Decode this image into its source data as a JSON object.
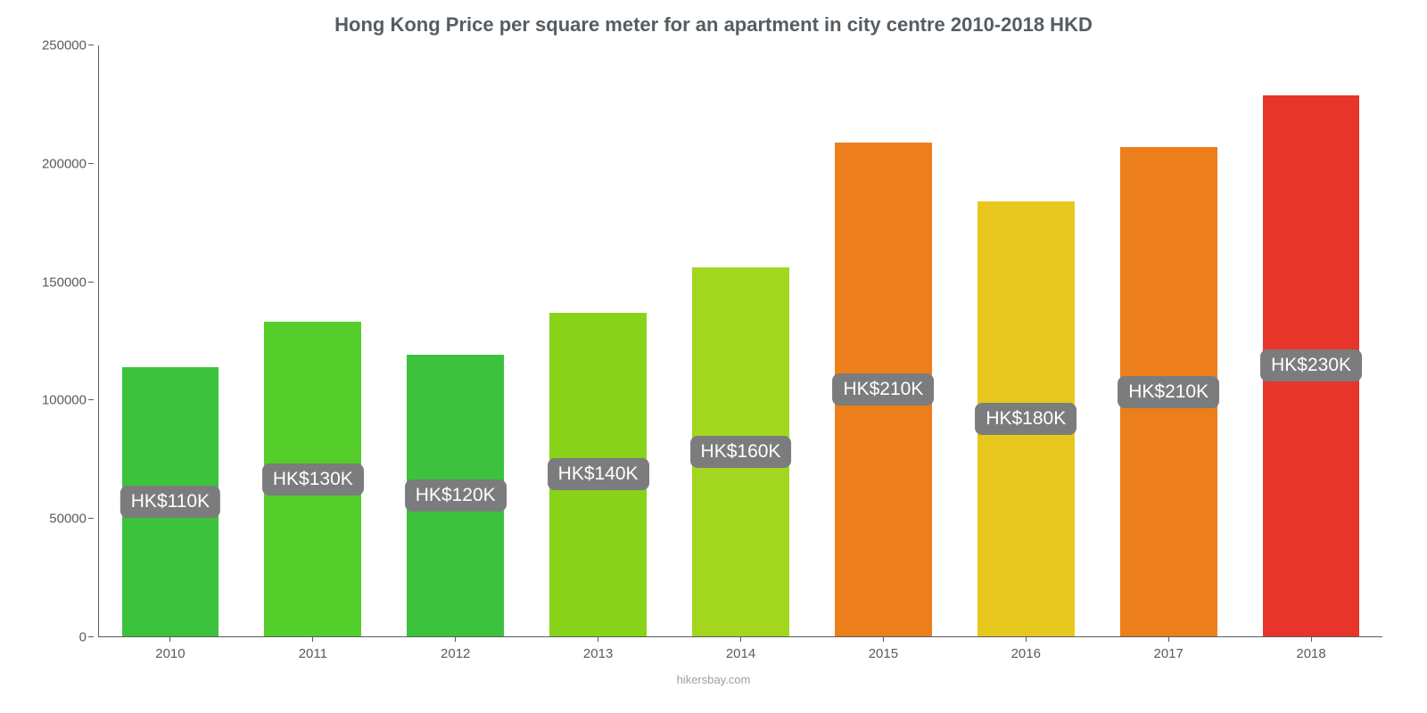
{
  "chart": {
    "type": "bar",
    "title": "Hong Kong Price per square meter for an apartment in city centre 2010-2018 HKD",
    "title_fontsize": 22,
    "title_color": "#555d63",
    "background_color": "#ffffff",
    "axis_color": "#555d63",
    "tick_fontsize": 15,
    "ylim": [
      0,
      250000
    ],
    "ytick_step": 50000,
    "yticks": [
      "0",
      "50000",
      "100000",
      "150000",
      "200000",
      "250000"
    ],
    "bar_width_pct": 68,
    "categories": [
      "2010",
      "2011",
      "2012",
      "2013",
      "2014",
      "2015",
      "2016",
      "2017",
      "2018"
    ],
    "values": [
      114000,
      133000,
      119000,
      137000,
      156000,
      209000,
      184000,
      207000,
      229000
    ],
    "bar_colors": [
      "#3dc23d",
      "#54ce2b",
      "#3dc23d",
      "#88d319",
      "#a2d61f",
      "#ec7e1c",
      "#e7c71d",
      "#ec7e1c",
      "#e7352b"
    ],
    "value_labels": [
      "HK$110K",
      "HK$130K",
      "HK$120K",
      "HK$140K",
      "HK$160K",
      "HK$210K",
      "HK$180K",
      "HK$210K",
      "HK$230K"
    ],
    "label_badge_bg": "#7b7c7d",
    "label_badge_color": "#ffffff",
    "label_badge_fontsize": 21,
    "credit": "hikersbay.com",
    "credit_color": "#9aa0a6",
    "credit_fontsize": 13
  }
}
